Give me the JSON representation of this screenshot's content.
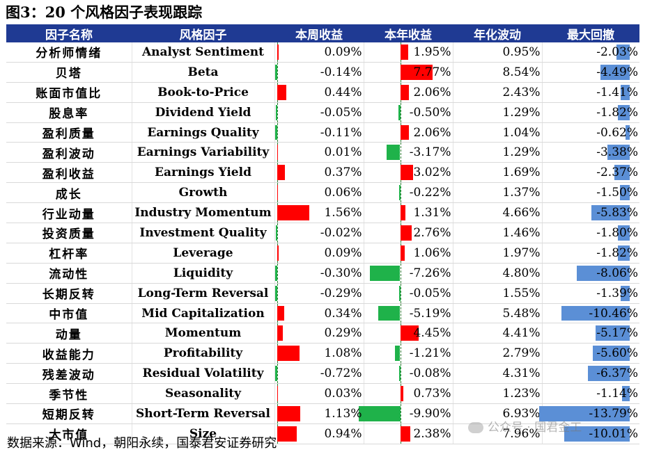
{
  "figure": {
    "title": "图3：20 个风格因子表现跟踪",
    "source": "数据来源：Wind，朝阳永续，国泰君安证券研究",
    "watermark": "公众号 · 国君金工"
  },
  "colors": {
    "header_bg": "#1f3a93",
    "positive_bar": "#ff0000",
    "negative_bar": "#1fb24a",
    "drawdown_bar": "#5b8fd6"
  },
  "table": {
    "headers": [
      "因子名称",
      "风格因子",
      "本周收益",
      "本年收益",
      "年化波动",
      "最大回撤"
    ],
    "rows": [
      {
        "cn": "分析师情绪",
        "en": "Analyst Sentiment",
        "week": "0.09%",
        "week_v": 0.09,
        "year": "1.95%",
        "year_v": 1.95,
        "vol": "0.95%",
        "dd": "-2.03%",
        "dd_v": -2.03
      },
      {
        "cn": "贝塔",
        "en": "Beta",
        "week": "-0.14%",
        "week_v": -0.14,
        "year": "7.77%",
        "year_v": 7.77,
        "vol": "8.54%",
        "dd": "-4.49%",
        "dd_v": -4.49
      },
      {
        "cn": "账面市值比",
        "en": "Book-to-Price",
        "week": "0.44%",
        "week_v": 0.44,
        "year": "2.06%",
        "year_v": 2.06,
        "vol": "2.43%",
        "dd": "-1.41%",
        "dd_v": -1.41
      },
      {
        "cn": "股息率",
        "en": "Dividend Yield",
        "week": "-0.05%",
        "week_v": -0.05,
        "year": "-0.50%",
        "year_v": -0.5,
        "vol": "1.29%",
        "dd": "-1.82%",
        "dd_v": -1.82
      },
      {
        "cn": "盈利质量",
        "en": "Earnings Quality",
        "week": "-0.11%",
        "week_v": -0.11,
        "year": "2.06%",
        "year_v": 2.06,
        "vol": "1.04%",
        "dd": "-0.62%",
        "dd_v": -0.62
      },
      {
        "cn": "盈利波动",
        "en": "Earnings Variability",
        "week": "0.01%",
        "week_v": 0.01,
        "year": "-3.17%",
        "year_v": -3.17,
        "vol": "1.29%",
        "dd": "-3.38%",
        "dd_v": -3.38
      },
      {
        "cn": "盈利收益",
        "en": "Earnings Yield",
        "week": "0.37%",
        "week_v": 0.37,
        "year": "3.02%",
        "year_v": 3.02,
        "vol": "1.69%",
        "dd": "-2.37%",
        "dd_v": -2.37
      },
      {
        "cn": "成长",
        "en": "Growth",
        "week": "0.06%",
        "week_v": 0.06,
        "year": "-0.22%",
        "year_v": -0.22,
        "vol": "1.37%",
        "dd": "-1.50%",
        "dd_v": -1.5
      },
      {
        "cn": "行业动量",
        "en": "Industry Momentum",
        "week": "1.56%",
        "week_v": 1.56,
        "year": "1.31%",
        "year_v": 1.31,
        "vol": "4.66%",
        "dd": "-5.83%",
        "dd_v": -5.83
      },
      {
        "cn": "投资质量",
        "en": "Investment Quality",
        "week": "-0.02%",
        "week_v": -0.02,
        "year": "2.76%",
        "year_v": 2.76,
        "vol": "1.46%",
        "dd": "-1.80%",
        "dd_v": -1.8
      },
      {
        "cn": "杠杆率",
        "en": "Leverage",
        "week": "0.09%",
        "week_v": 0.09,
        "year": "1.06%",
        "year_v": 1.06,
        "vol": "1.97%",
        "dd": "-1.82%",
        "dd_v": -1.82
      },
      {
        "cn": "流动性",
        "en": "Liquidity",
        "week": "-0.30%",
        "week_v": -0.3,
        "year": "-7.26%",
        "year_v": -7.26,
        "vol": "4.80%",
        "dd": "-8.06%",
        "dd_v": -8.06
      },
      {
        "cn": "长期反转",
        "en": "Long-Term Reversal",
        "week": "-0.29%",
        "week_v": -0.29,
        "year": "-0.05%",
        "year_v": -0.05,
        "vol": "1.55%",
        "dd": "-1.39%",
        "dd_v": -1.39
      },
      {
        "cn": "中市值",
        "en": "Mid Capitalization",
        "week": "0.34%",
        "week_v": 0.34,
        "year": "-5.19%",
        "year_v": -5.19,
        "vol": "5.48%",
        "dd": "-10.46%",
        "dd_v": -10.46
      },
      {
        "cn": "动量",
        "en": "Momentum",
        "week": "0.29%",
        "week_v": 0.29,
        "year": "4.45%",
        "year_v": 4.45,
        "vol": "4.41%",
        "dd": "-5.17%",
        "dd_v": -5.17
      },
      {
        "cn": "收益能力",
        "en": "Profitability",
        "week": "1.08%",
        "week_v": 1.08,
        "year": "-1.21%",
        "year_v": -1.21,
        "vol": "2.79%",
        "dd": "-5.60%",
        "dd_v": -5.6
      },
      {
        "cn": "残差波动",
        "en": "Residual Volatility",
        "week": "-0.72%",
        "week_v": -0.72,
        "year": "-0.08%",
        "year_v": -0.08,
        "vol": "4.31%",
        "dd": "-6.37%",
        "dd_v": -6.37
      },
      {
        "cn": "季节性",
        "en": "Seasonality",
        "week": "0.03%",
        "week_v": 0.03,
        "year": "0.73%",
        "year_v": 0.73,
        "vol": "1.23%",
        "dd": "-1.14%",
        "dd_v": -1.14
      },
      {
        "cn": "短期反转",
        "en": "Short-Term Reversal",
        "week": "1.13%",
        "week_v": 1.13,
        "year": "-9.90%",
        "year_v": -9.9,
        "vol": "6.93%",
        "dd": "-13.79%",
        "dd_v": -13.79
      },
      {
        "cn": "大市值",
        "en": "Size",
        "week": "0.94%",
        "week_v": 0.94,
        "year": "2.38%",
        "year_v": 2.38,
        "vol": "7.96%",
        "dd": "-10.01%",
        "dd_v": -10.01
      }
    ]
  }
}
